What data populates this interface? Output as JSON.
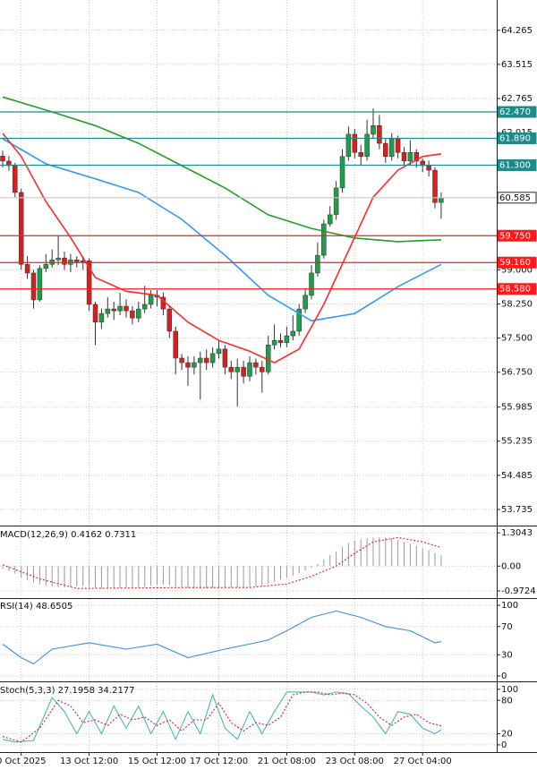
{
  "chart_data": [
    {
      "type": "candlestick",
      "open": [
        61.5,
        61.39,
        61.29,
        60.7,
        59.12,
        58.93,
        58.34,
        59.03,
        59.12,
        59.22,
        59.26,
        59.12,
        59.22,
        59.18,
        59.2,
        58.24,
        57.85,
        58.04,
        58.14,
        58.1,
        58.2,
        58.1,
        57.94,
        58.14,
        58.24,
        58.44,
        58.4,
        58.14,
        57.65,
        57.06,
        56.96,
        56.86,
        56.96,
        57.06,
        56.96,
        57.16,
        57.26,
        56.86,
        56.76,
        56.86,
        56.66,
        56.96,
        56.86,
        56.76,
        57.35,
        57.45,
        57.4,
        57.55,
        57.65,
        58.14,
        58.44,
        58.93,
        59.32,
        60.01,
        60.21,
        60.8,
        61.49,
        61.98,
        61.58,
        61.49,
        61.98,
        62.17,
        61.78,
        61.49,
        61.88,
        61.58,
        61.39,
        61.58,
        61.39,
        61.29,
        61.19,
        60.48
      ],
      "high": [
        61.62,
        61.5,
        61.35,
        60.78,
        59.3,
        59.0,
        59.1,
        59.35,
        59.45,
        59.75,
        59.4,
        59.35,
        59.3,
        59.3,
        59.25,
        58.3,
        58.15,
        58.4,
        58.3,
        58.5,
        58.35,
        58.2,
        58.3,
        58.65,
        58.55,
        58.55,
        58.5,
        58.2,
        57.75,
        57.15,
        57.1,
        57.1,
        57.2,
        57.25,
        57.3,
        57.45,
        57.35,
        57.0,
        57.05,
        57.0,
        57.1,
        57.05,
        57.0,
        57.55,
        57.8,
        57.6,
        57.75,
        58.0,
        58.25,
        58.6,
        59.1,
        59.6,
        60.1,
        60.4,
        60.95,
        61.65,
        62.15,
        62.1,
        61.75,
        62.3,
        62.55,
        62.4,
        61.9,
        62.0,
        61.95,
        61.7,
        61.85,
        61.65,
        61.45,
        61.4,
        61.25,
        60.7
      ],
      "low": [
        61.25,
        61.18,
        60.6,
        59.0,
        58.8,
        58.15,
        58.3,
        58.95,
        59.05,
        59.1,
        59.0,
        58.95,
        59.05,
        59.0,
        58.1,
        57.35,
        57.7,
        57.95,
        57.9,
        58.0,
        57.95,
        57.8,
        57.85,
        58.05,
        58.15,
        58.2,
        58.0,
        57.5,
        56.7,
        56.8,
        56.45,
        56.7,
        56.15,
        56.8,
        56.85,
        57.05,
        56.7,
        56.6,
        56.0,
        56.5,
        56.55,
        56.7,
        56.3,
        56.7,
        57.25,
        57.3,
        57.3,
        57.45,
        57.55,
        58.05,
        58.35,
        58.85,
        59.25,
        59.95,
        60.1,
        60.7,
        61.4,
        61.45,
        61.3,
        61.4,
        61.9,
        61.65,
        61.35,
        61.4,
        61.45,
        61.3,
        61.3,
        61.25,
        61.15,
        61.05,
        60.35,
        60.12
      ],
      "close": [
        61.39,
        61.29,
        60.7,
        59.12,
        58.93,
        58.34,
        59.03,
        59.12,
        59.22,
        59.26,
        59.12,
        59.22,
        59.18,
        59.2,
        58.24,
        57.85,
        58.04,
        58.14,
        58.1,
        58.2,
        58.1,
        57.94,
        58.14,
        58.24,
        58.44,
        58.4,
        58.14,
        57.65,
        57.06,
        56.96,
        56.86,
        56.96,
        57.06,
        56.96,
        57.16,
        57.26,
        56.86,
        56.76,
        56.86,
        56.66,
        56.96,
        56.86,
        56.76,
        57.35,
        57.45,
        57.4,
        57.55,
        57.65,
        58.14,
        58.44,
        58.93,
        59.32,
        60.01,
        60.21,
        60.8,
        61.49,
        61.98,
        61.58,
        61.49,
        61.98,
        62.17,
        61.78,
        61.49,
        61.88,
        61.58,
        61.39,
        61.58,
        61.39,
        61.29,
        61.19,
        60.48,
        60.585
      ],
      "up_color": "#1f9d4c",
      "down_color": "#d62020",
      "ylim": [
        53.38,
        64.93
      ],
      "yticks": [
        64.265,
        63.515,
        62.765,
        62.015,
        {
          "value": 59,
          "label": "59.000"
        },
        {
          "value": 58.25,
          "label": "58.250"
        },
        {
          "value": 57.5,
          "label": "57.500"
        },
        {
          "value": 56.75,
          "label": "56.750"
        },
        55.985,
        55.235,
        54.485,
        53.735
      ],
      "xticks": [
        {
          "value": 3,
          "label": "0 Oct 2025"
        },
        {
          "value": 14,
          "label": "13 Oct 12:00"
        },
        {
          "value": 25,
          "label": "15 Oct 12:00"
        },
        {
          "value": 35,
          "label": "17 Oct 12:00"
        },
        {
          "value": 46,
          "label": "21 Oct 08:00"
        },
        {
          "value": 57,
          "label": "23 Oct 08:00"
        },
        {
          "value": 68,
          "label": "27 Oct 04:00"
        }
      ],
      "grid": true,
      "series": [
        {
          "color": "#22a022",
          "x": [
            0,
            8,
            15,
            22,
            29,
            36,
            43,
            50,
            57,
            64,
            71
          ],
          "values": [
            62.8,
            62.47,
            62.17,
            61.78,
            61.29,
            60.8,
            60.21,
            59.91,
            59.7,
            59.62,
            59.66
          ]
        },
        {
          "color": "#3399ff",
          "x": [
            0,
            7,
            15,
            22,
            29,
            36,
            43,
            50,
            57,
            64,
            71
          ],
          "values": [
            61.88,
            61.33,
            61.0,
            60.7,
            60.11,
            59.32,
            58.44,
            57.88,
            58.04,
            58.63,
            59.12
          ]
        },
        {
          "color": "#ff2a2a",
          "x": [
            0,
            3,
            7,
            11,
            15,
            20,
            25,
            30,
            35,
            40,
            44,
            48,
            52,
            56,
            60,
            64,
            68,
            71
          ],
          "values": [
            62.0,
            61.49,
            60.5,
            59.71,
            58.83,
            58.53,
            58.44,
            57.85,
            57.45,
            57.21,
            56.96,
            57.26,
            58.24,
            59.42,
            60.6,
            61.19,
            61.49,
            61.55
          ]
        }
      ],
      "levels": [
        {
          "value": 62.47,
          "label": "62.470",
          "color": "#1f8a8a"
        },
        {
          "value": 61.89,
          "label": "61.890",
          "color": "#1f8a8a"
        },
        {
          "value": 61.3,
          "label": "61.300",
          "color": "#1f8a8a"
        },
        {
          "value": 60.585,
          "color": "#c8c8c8",
          "label_style": "outline"
        },
        {
          "value": 59.75,
          "label": "59.750",
          "color": "#ff1a1a"
        },
        {
          "value": 59.16,
          "label": "59.160",
          "color": "#ff1a1a"
        },
        {
          "value": 58.58,
          "label": "58.580",
          "color": "#ff1a1a"
        }
      ]
    },
    {
      "type": "bar",
      "title": "MACD(12,26,9) 0.4162 0.7311",
      "color": "#9a9a9a",
      "values": [
        -0.1,
        -0.2,
        -0.3,
        -0.45,
        -0.55,
        -0.65,
        -0.72,
        -0.78,
        -0.8,
        -0.82,
        -0.83,
        -0.82,
        -0.8,
        -0.78,
        -0.8,
        -0.85,
        -0.88,
        -0.88,
        -0.87,
        -0.86,
        -0.85,
        -0.84,
        -0.82,
        -0.8,
        -0.78,
        -0.75,
        -0.74,
        -0.76,
        -0.8,
        -0.84,
        -0.87,
        -0.88,
        -0.88,
        -0.87,
        -0.86,
        -0.85,
        -0.84,
        -0.84,
        -0.84,
        -0.83,
        -0.82,
        -0.8,
        -0.78,
        -0.7,
        -0.6,
        -0.52,
        -0.45,
        -0.38,
        -0.28,
        -0.18,
        -0.06,
        0.08,
        0.25,
        0.42,
        0.58,
        0.75,
        0.9,
        1.0,
        1.05,
        1.1,
        1.12,
        1.14,
        1.12,
        1.08,
        1.02,
        0.95,
        0.88,
        0.8,
        0.7,
        0.62,
        0.52,
        0.4162
      ],
      "ylim": [
        -1.22,
        1.52
      ],
      "yticks": [
        1.3043,
        {
          "value": 0,
          "label": "0.00"
        },
        -0.9724
      ],
      "series": [
        {
          "color": "#e02020",
          "dashed": true,
          "x": [
            0,
            6,
            12,
            20,
            30,
            40,
            46,
            50,
            54,
            57,
            60,
            64,
            68,
            71
          ],
          "values": [
            0.05,
            -0.5,
            -0.88,
            -0.86,
            -0.84,
            -0.84,
            -0.7,
            -0.4,
            0.0,
            0.5,
            0.95,
            1.12,
            0.95,
            0.7311
          ]
        }
      ]
    },
    {
      "type": "line",
      "title": "RSI(14) 48.6505",
      "ylim": [
        -6.4,
        109
      ],
      "yticks": [
        100,
        70,
        30,
        0
      ],
      "series": [
        {
          "color": "#3d8fe0",
          "x": [
            0,
            3,
            5,
            8,
            14,
            20,
            25,
            30,
            36,
            41,
            43,
            46,
            50,
            54,
            58,
            62,
            66,
            70,
            71
          ],
          "values": [
            45,
            26,
            17,
            38,
            47,
            38,
            45,
            26,
            38,
            47,
            51,
            64,
            83,
            92,
            83,
            70,
            64,
            47,
            48.6505
          ]
        }
      ]
    },
    {
      "type": "line",
      "title": "Stoch(5,3,3) 27.1958 34.2177",
      "ylim": [
        -13,
        111
      ],
      "yticks": [
        100,
        80,
        20,
        0
      ],
      "series": [
        {
          "color": "#4fb4bc",
          "x": [
            0,
            2,
            5,
            8,
            10,
            12,
            14,
            16,
            18,
            20,
            22,
            24,
            26,
            28,
            30,
            32,
            34,
            36,
            38,
            40,
            42,
            44,
            46,
            48,
            50,
            52,
            54,
            56,
            58,
            60,
            62,
            64,
            66,
            68,
            70,
            71
          ],
          "values": [
            10,
            5,
            8,
            85,
            60,
            20,
            60,
            20,
            70,
            30,
            70,
            20,
            60,
            10,
            60,
            20,
            90,
            30,
            10,
            60,
            20,
            60,
            95,
            95,
            95,
            90,
            95,
            92,
            70,
            50,
            20,
            60,
            55,
            30,
            20,
            27.1958
          ]
        },
        {
          "color": "#e02020",
          "dashed": true,
          "x": [
            0,
            3,
            6,
            9,
            11,
            13,
            15,
            17,
            19,
            21,
            23,
            25,
            27,
            29,
            31,
            33,
            35,
            37,
            39,
            41,
            43,
            45,
            47,
            49,
            51,
            53,
            55,
            57,
            59,
            61,
            63,
            65,
            67,
            69,
            71
          ],
          "values": [
            15,
            5,
            30,
            80,
            70,
            40,
            45,
            35,
            55,
            45,
            50,
            35,
            45,
            25,
            45,
            45,
            75,
            40,
            25,
            40,
            35,
            50,
            90,
            95,
            95,
            90,
            93,
            90,
            75,
            50,
            35,
            50,
            55,
            40,
            34.2177
          ]
        }
      ]
    }
  ]
}
